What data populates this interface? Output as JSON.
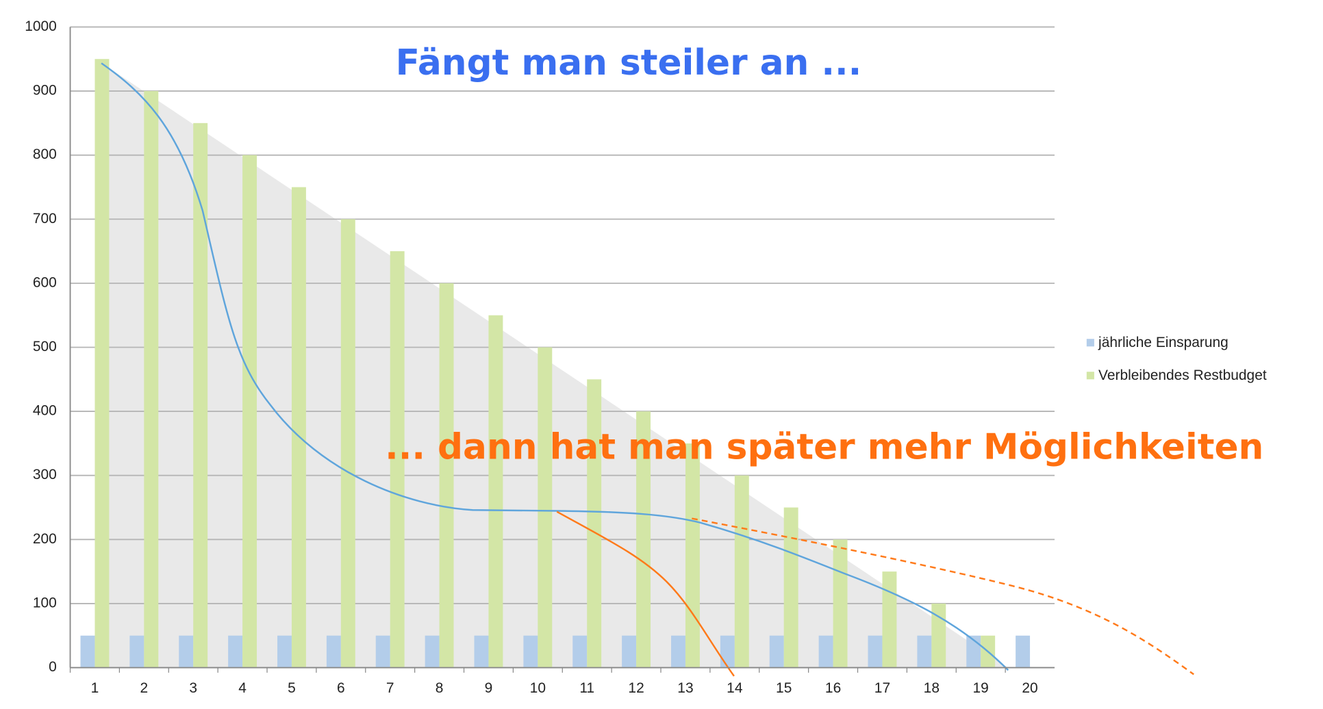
{
  "chart_data": {
    "type": "bar",
    "categories": [
      "1",
      "2",
      "3",
      "4",
      "5",
      "6",
      "7",
      "8",
      "9",
      "10",
      "11",
      "12",
      "13",
      "14",
      "15",
      "16",
      "17",
      "18",
      "19",
      "20"
    ],
    "series": [
      {
        "name": "jährliche Einsparung",
        "color": "#b3cdea",
        "values": [
          50,
          50,
          50,
          50,
          50,
          50,
          50,
          50,
          50,
          50,
          50,
          50,
          50,
          50,
          50,
          50,
          50,
          50,
          50,
          50
        ]
      },
      {
        "name": "Verbleibendes Restbudget",
        "color": "#d3e6a6",
        "values": [
          950,
          900,
          850,
          800,
          750,
          700,
          650,
          600,
          550,
          500,
          450,
          400,
          350,
          300,
          250,
          200,
          150,
          100,
          50,
          0
        ]
      }
    ],
    "ylim": [
      0,
      1000
    ],
    "yticks": [
      0,
      100,
      200,
      300,
      400,
      500,
      600,
      700,
      800,
      900,
      1000
    ],
    "grid": true,
    "legend": "right",
    "annotations": [
      "Fängt man steiler an ...",
      "... dann hat man später mehr Möglichkeiten"
    ]
  }
}
